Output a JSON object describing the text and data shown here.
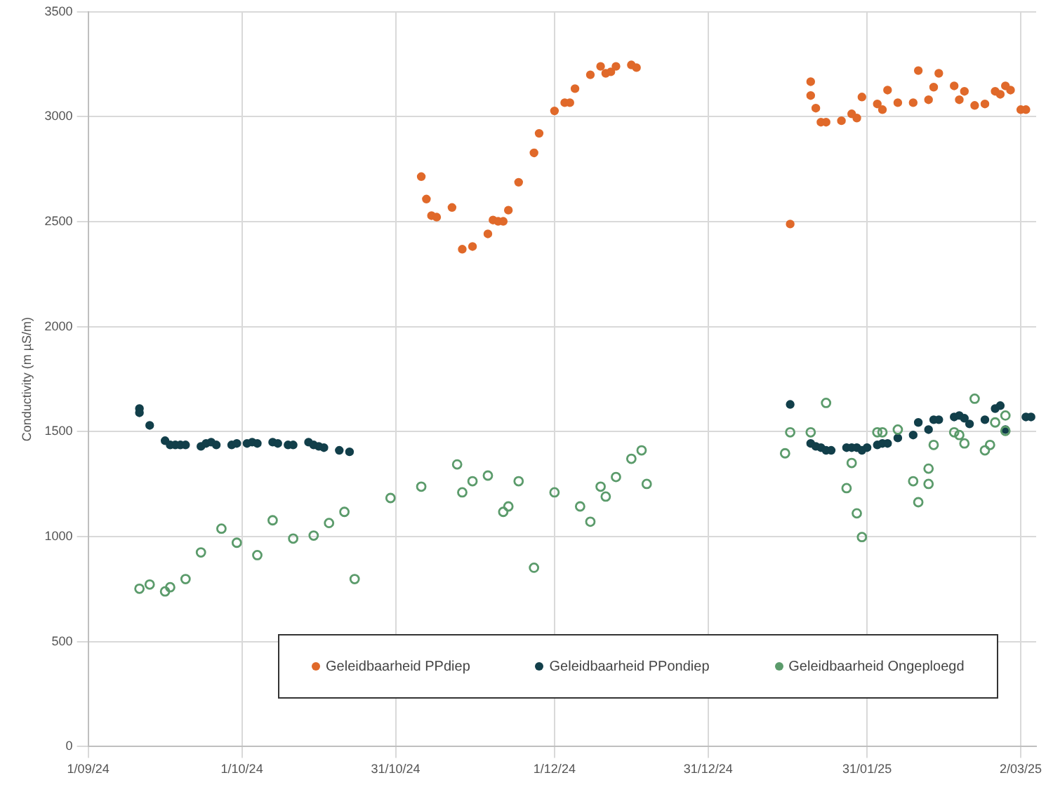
{
  "chart_data": {
    "type": "scatter",
    "ylabel": "Conductivity (m µS/m)",
    "xlim": [
      "2024-09-01",
      "2025-03-05"
    ],
    "xticks": [
      {
        "value": "2024-09-01",
        "label": "1/09/24"
      },
      {
        "value": "2024-10-01",
        "label": "1/10/24"
      },
      {
        "value": "2024-10-31",
        "label": "31/10/24"
      },
      {
        "value": "2024-12-01",
        "label": "1/12/24"
      },
      {
        "value": "2024-12-31",
        "label": "31/12/24"
      },
      {
        "value": "2025-01-31",
        "label": "31/01/25"
      },
      {
        "value": "2025-03-02",
        "label": "2/03/25"
      }
    ],
    "ylim": [
      0,
      3500
    ],
    "yticks": [
      0,
      500,
      1000,
      1500,
      2000,
      2500,
      3000,
      3500
    ],
    "grid": true,
    "legend": "bottom",
    "marker": "circle",
    "series": [
      {
        "name": "Geleidbaarheid PPdiep",
        "color": "#e0692a",
        "x": [
          "2024-11-05",
          "2024-11-06",
          "2024-11-07",
          "2024-11-08",
          "2024-11-11",
          "2024-11-13",
          "2024-11-15",
          "2024-11-18",
          "2024-11-19",
          "2024-11-20",
          "2024-11-21",
          "2024-11-22",
          "2024-11-24",
          "2024-11-27",
          "2024-11-28",
          "2024-12-01",
          "2024-12-03",
          "2024-12-04",
          "2024-12-05",
          "2024-12-08",
          "2024-12-10",
          "2024-12-11",
          "2024-12-12",
          "2024-12-13",
          "2024-12-16",
          "2024-12-17",
          "2025-01-16",
          "2025-01-20",
          "2025-01-20",
          "2025-01-21",
          "2025-01-22",
          "2025-01-23",
          "2025-01-26",
          "2025-01-28",
          "2025-01-29",
          "2025-01-30",
          "2025-02-02",
          "2025-02-03",
          "2025-02-04",
          "2025-02-06",
          "2025-02-09",
          "2025-02-10",
          "2025-02-12",
          "2025-02-13",
          "2025-02-14",
          "2025-02-17",
          "2025-02-18",
          "2025-02-19",
          "2025-02-21",
          "2025-02-23",
          "2025-02-25",
          "2025-02-26",
          "2025-02-27",
          "2025-02-28",
          "2025-03-02",
          "2025-03-03"
        ],
        "values": [
          2715,
          2608,
          2529,
          2522,
          2568,
          2369,
          2382,
          2442,
          2508,
          2502,
          2502,
          2555,
          2688,
          2828,
          2921,
          3028,
          3067,
          3067,
          3134,
          3200,
          3240,
          3207,
          3214,
          3240,
          3247,
          3234,
          2489,
          3167,
          3101,
          3041,
          2974,
          2974,
          2981,
          3014,
          2994,
          3094,
          3061,
          3034,
          3127,
          3067,
          3067,
          3220,
          3081,
          3141,
          3207,
          3147,
          3081,
          3121,
          3054,
          3061,
          3121,
          3107,
          3147,
          3127,
          3034,
          3034
        ]
      },
      {
        "name": "Geleidbaarheid PPondiep",
        "color": "#123f4a",
        "x": [
          "2024-09-11",
          "2024-09-11",
          "2024-09-13",
          "2024-09-16",
          "2024-09-17",
          "2024-09-18",
          "2024-09-19",
          "2024-09-20",
          "2024-09-23",
          "2024-09-24",
          "2024-09-25",
          "2024-09-26",
          "2024-09-29",
          "2024-09-30",
          "2024-10-02",
          "2024-10-03",
          "2024-10-04",
          "2024-10-07",
          "2024-10-08",
          "2024-10-10",
          "2024-10-11",
          "2024-10-14",
          "2024-10-15",
          "2024-10-16",
          "2024-10-17",
          "2024-10-20",
          "2024-10-22",
          "2025-01-16",
          "2025-01-20",
          "2025-01-21",
          "2025-01-22",
          "2025-01-23",
          "2025-01-24",
          "2025-01-27",
          "2025-01-28",
          "2025-01-29",
          "2025-01-30",
          "2025-01-31",
          "2025-02-02",
          "2025-02-03",
          "2025-02-04",
          "2025-02-06",
          "2025-02-09",
          "2025-02-10",
          "2025-02-12",
          "2025-02-13",
          "2025-02-14",
          "2025-02-17",
          "2025-02-18",
          "2025-02-19",
          "2025-02-20",
          "2025-02-23",
          "2025-02-25",
          "2025-02-26",
          "2025-02-27",
          "2025-03-03",
          "2025-03-04"
        ],
        "values": [
          1610,
          1590,
          1530,
          1457,
          1437,
          1437,
          1437,
          1437,
          1430,
          1444,
          1450,
          1437,
          1437,
          1444,
          1444,
          1450,
          1444,
          1450,
          1444,
          1437,
          1437,
          1450,
          1437,
          1430,
          1424,
          1411,
          1404,
          1630,
          1444,
          1430,
          1424,
          1411,
          1411,
          1424,
          1424,
          1424,
          1411,
          1424,
          1437,
          1444,
          1444,
          1470,
          1484,
          1544,
          1510,
          1557,
          1557,
          1570,
          1577,
          1564,
          1537,
          1557,
          1610,
          1624,
          1510,
          1570,
          1570
        ]
      },
      {
        "name": "Geleidbaarheid Ongeploegd",
        "color": "#5b9b6b",
        "x": [
          "2024-09-11",
          "2024-09-13",
          "2024-09-16",
          "2024-09-17",
          "2024-09-20",
          "2024-09-23",
          "2024-09-27",
          "2024-09-30",
          "2024-10-04",
          "2024-10-07",
          "2024-10-11",
          "2024-10-15",
          "2024-10-18",
          "2024-10-21",
          "2024-10-23",
          "2024-10-30",
          "2024-11-05",
          "2024-11-12",
          "2024-11-13",
          "2024-11-15",
          "2024-11-18",
          "2024-11-21",
          "2024-11-22",
          "2024-11-24",
          "2024-11-27",
          "2024-12-01",
          "2024-12-06",
          "2024-12-08",
          "2024-12-10",
          "2024-12-11",
          "2024-12-13",
          "2024-12-16",
          "2024-12-18",
          "2024-12-19",
          "2025-01-15",
          "2025-01-16",
          "2025-01-20",
          "2025-01-23",
          "2025-01-27",
          "2025-01-28",
          "2025-01-29",
          "2025-01-30",
          "2025-02-02",
          "2025-02-03",
          "2025-02-06",
          "2025-02-09",
          "2025-02-10",
          "2025-02-12",
          "2025-02-12",
          "2025-02-13",
          "2025-02-17",
          "2025-02-18",
          "2025-02-19",
          "2025-02-21",
          "2025-02-23",
          "2025-02-24",
          "2025-02-25",
          "2025-02-27",
          "2025-02-27"
        ],
        "values": [
          752,
          772,
          739,
          759,
          798,
          925,
          1038,
          971,
          912,
          1078,
          991,
          1005,
          1065,
          1118,
          798,
          1184,
          1238,
          1344,
          1211,
          1264,
          1291,
          1118,
          1144,
          1264,
          852,
          1211,
          1144,
          1071,
          1238,
          1191,
          1284,
          1371,
          1411,
          1251,
          1397,
          1497,
          1497,
          1637,
          1231,
          1351,
          1111,
          998,
          1497,
          1497,
          1510,
          1264,
          1164,
          1251,
          1324,
          1437,
          1497,
          1484,
          1444,
          1657,
          1411,
          1437,
          1544,
          1504,
          1577
        ]
      }
    ]
  }
}
